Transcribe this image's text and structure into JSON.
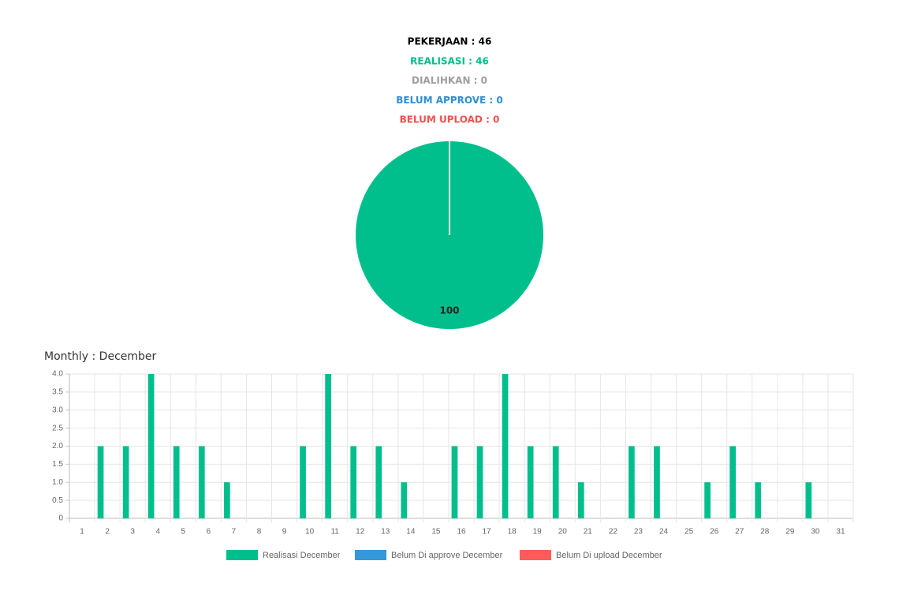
{
  "summary": [
    {
      "text": "PEKERJAAN : 46",
      "color": "#000000"
    },
    {
      "text": "REALISASI : 46",
      "color": "#00bf8c"
    },
    {
      "text": "DIALIHKAN : 0",
      "color": "#9e9e9e"
    },
    {
      "text": "BELUM APPROVE : 0",
      "color": "#2e8fd6"
    },
    {
      "text": "BELUM UPLOAD : 0",
      "color": "#f44f4f"
    }
  ],
  "chart_data": [
    {
      "type": "pie",
      "values": [
        100
      ],
      "colors": [
        "#00bf8c"
      ]
    },
    {
      "type": "bar",
      "title": "Monthly : December",
      "categories": [
        "1",
        "2",
        "3",
        "4",
        "5",
        "6",
        "7",
        "8",
        "9",
        "10",
        "11",
        "12",
        "13",
        "14",
        "15",
        "16",
        "17",
        "18",
        "19",
        "20",
        "21",
        "22",
        "23",
        "24",
        "25",
        "26",
        "27",
        "28",
        "29",
        "30",
        "31"
      ],
      "series": [
        {
          "name": "Realisasi December",
          "color": "#00bf8c",
          "values": [
            0,
            2,
            2,
            4,
            2,
            2,
            1,
            0,
            0,
            2,
            4,
            2,
            2,
            1,
            0,
            2,
            2,
            4,
            2,
            2,
            1,
            0,
            2,
            2,
            0,
            1,
            2,
            1,
            0,
            1,
            0
          ]
        },
        {
          "name": "Belum Di approve December",
          "color": "#3498db",
          "values": [
            0,
            0,
            0,
            0,
            0,
            0,
            0,
            0,
            0,
            0,
            0,
            0,
            0,
            0,
            0,
            0,
            0,
            0,
            0,
            0,
            0,
            0,
            0,
            0,
            0,
            0,
            0,
            0,
            0,
            0,
            0
          ]
        },
        {
          "name": "Belum Di upload December",
          "color": "#ff5b5b",
          "values": [
            0,
            0,
            0,
            0,
            0,
            0,
            0,
            0,
            0,
            0,
            0,
            0,
            0,
            0,
            0,
            0,
            0,
            0,
            0,
            0,
            0,
            0,
            0,
            0,
            0,
            0,
            0,
            0,
            0,
            0,
            0
          ]
        }
      ],
      "ylim": [
        0,
        4
      ],
      "yticks": [
        0,
        0.5,
        {
          "value": 1,
          "label": "1.0"
        },
        1.5,
        {
          "value": 2,
          "label": "2.0"
        },
        2.5,
        {
          "value": 3,
          "label": "3.0"
        },
        3.5,
        {
          "value": 4,
          "label": "4.0"
        }
      ],
      "grid": true
    }
  ]
}
